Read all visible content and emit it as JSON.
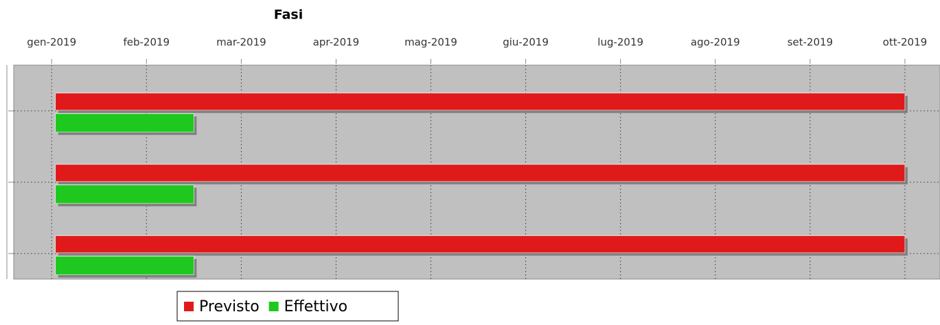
{
  "chart_data": {
    "type": "gantt",
    "title": "Fasi",
    "categories": [
      null,
      null,
      null
    ],
    "series": [
      {
        "name": "Previsto",
        "color": "#e01a1a",
        "start": [
          1.04,
          1.04,
          1.04
        ],
        "end": [
          10.0,
          10.0,
          10.0
        ]
      },
      {
        "name": "Effettivo",
        "color": "#1ec81e",
        "start": [
          1.04,
          1.04,
          1.04
        ],
        "end": [
          2.5,
          2.5,
          2.5
        ]
      }
    ],
    "xlim": [
      0.6,
      10.37
    ],
    "xticks": [
      {
        "value": 1,
        "label": "gen-2019"
      },
      {
        "value": 2,
        "label": "feb-2019"
      },
      {
        "value": 3,
        "label": "mar-2019"
      },
      {
        "value": 4,
        "label": "apr-2019"
      },
      {
        "value": 5,
        "label": "mag-2019"
      },
      {
        "value": 6,
        "label": "giu-2019"
      },
      {
        "value": 7,
        "label": "lug-2019"
      },
      {
        "value": 8,
        "label": "ago-2019"
      },
      {
        "value": 9,
        "label": "set-2019"
      },
      {
        "value": 10,
        "label": "ott-2019"
      }
    ],
    "grid": true,
    "legend": "bottom"
  }
}
